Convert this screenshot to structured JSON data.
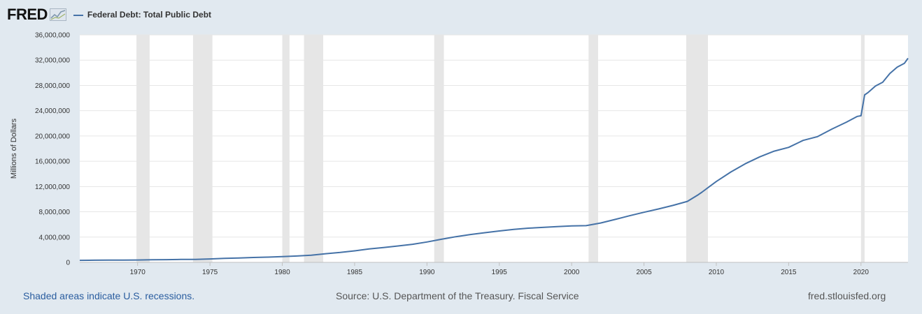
{
  "header": {
    "logo_text": "FRED",
    "series_title": "Federal Debt: Total Public Debt"
  },
  "footer": {
    "recession_note": "Shaded areas indicate U.S. recessions.",
    "source": "Source: U.S. Department of the Treasury. Fiscal Service",
    "site": "fred.stlouisfed.org"
  },
  "colors": {
    "series_line": "#4572a7",
    "recession_shade": "#e6e6e6",
    "grid": "#e6e6e6",
    "background": "#e1e9f0"
  },
  "chart_data": {
    "type": "line",
    "title": "Federal Debt: Total Public Debt",
    "xlabel": "",
    "ylabel": "Millions of Dollars",
    "xlim": [
      1966.0,
      2023.25
    ],
    "ylim": [
      0,
      36000000
    ],
    "grid": true,
    "legend_position": "top-left",
    "x_ticks": [
      1970,
      1975,
      1980,
      1985,
      1990,
      1995,
      2000,
      2005,
      2010,
      2015,
      2020
    ],
    "y_ticks": [
      0,
      4000000,
      8000000,
      12000000,
      16000000,
      20000000,
      24000000,
      28000000,
      32000000,
      36000000
    ],
    "y_tick_labels": [
      "0",
      "4,000,000",
      "8,000,000",
      "12,000,000",
      "16,000,000",
      "20,000,000",
      "24,000,000",
      "28,000,000",
      "32,000,000",
      "36,000,000"
    ],
    "recessions": [
      [
        1969.92,
        1970.83
      ],
      [
        1973.83,
        1975.17
      ],
      [
        1980.0,
        1980.5
      ],
      [
        1981.5,
        1982.83
      ],
      [
        1990.5,
        1991.17
      ],
      [
        2001.17,
        2001.83
      ],
      [
        2007.92,
        2009.42
      ],
      [
        2020.0,
        2020.25
      ]
    ],
    "series": [
      {
        "name": "Federal Debt: Total Public Debt",
        "x": [
          1966.0,
          1967,
          1968,
          1969,
          1970,
          1971,
          1972,
          1973,
          1974,
          1975,
          1976,
          1977,
          1978,
          1979,
          1980,
          1981,
          1982,
          1983,
          1984,
          1985,
          1986,
          1987,
          1988,
          1989,
          1990,
          1991,
          1992,
          1993,
          1994,
          1995,
          1996,
          1997,
          1998,
          1999,
          2000,
          2001,
          2002,
          2003,
          2004,
          2005,
          2006,
          2007,
          2008,
          2008.75,
          2009,
          2010,
          2011,
          2012,
          2013,
          2014,
          2015,
          2016,
          2017,
          2018,
          2019,
          2019.75,
          2020.0,
          2020.25,
          2020.5,
          2021,
          2021.5,
          2022,
          2022.5,
          2023,
          2023.25
        ],
        "y": [
          320000,
          345000,
          360000,
          365000,
          380000,
          410000,
          435000,
          465000,
          480000,
          540000,
          630000,
          700000,
          770000,
          830000,
          910000,
          1000000,
          1140000,
          1370000,
          1570000,
          1820000,
          2120000,
          2350000,
          2600000,
          2860000,
          3230000,
          3660000,
          4060000,
          4410000,
          4690000,
          4970000,
          5220000,
          5410000,
          5530000,
          5660000,
          5780000,
          5810000,
          6230000,
          6790000,
          7380000,
          7930000,
          8450000,
          9010000,
          9650000,
          10700000,
          11100000,
          12800000,
          14300000,
          15600000,
          16700000,
          17600000,
          18200000,
          19300000,
          19900000,
          21100000,
          22200000,
          23100000,
          23200000,
          26500000,
          26900000,
          27900000,
          28500000,
          29900000,
          30900000,
          31500000,
          32300000
        ]
      }
    ]
  }
}
